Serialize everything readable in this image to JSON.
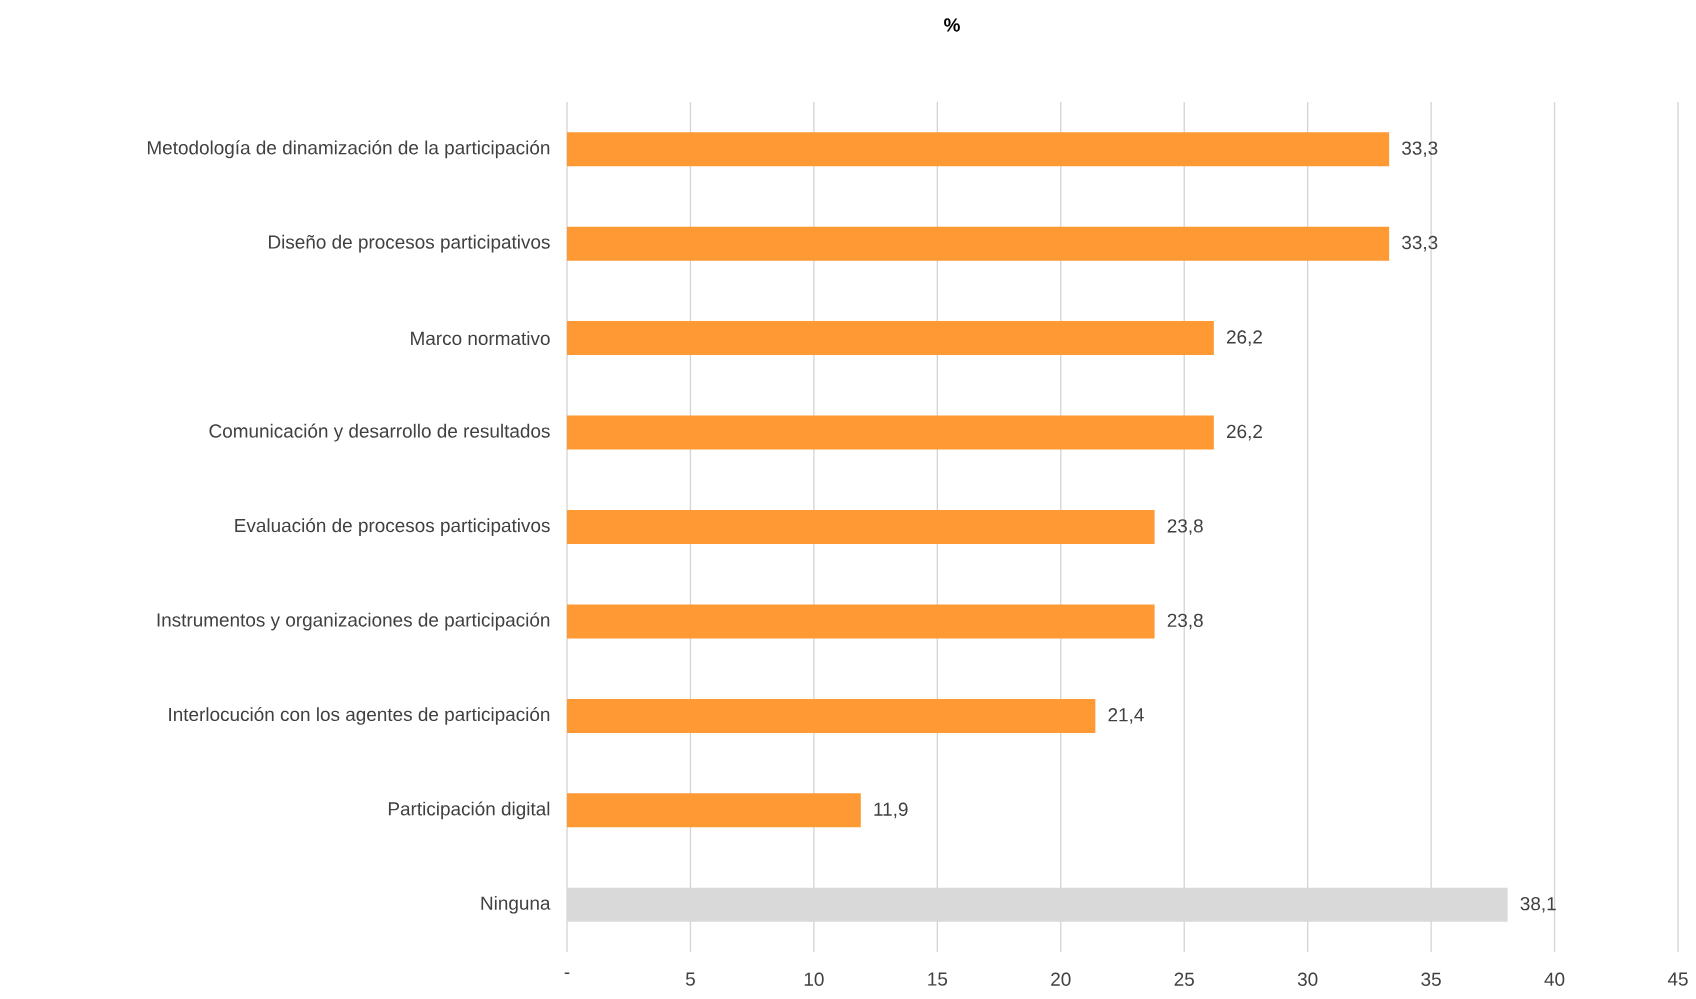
{
  "chart_data": {
    "type": "bar",
    "orientation": "horizontal",
    "title": "%",
    "categories": [
      "Metodología de dinamización de la participación",
      "Diseño de procesos participativos",
      "Marco normativo",
      "Comunicación y desarrollo de resultados",
      "Evaluación de procesos participativos",
      "Instrumentos y organizaciones de participación",
      "Interlocución con los agentes de participación",
      "Participación digital",
      "Ninguna"
    ],
    "values": [
      33.3,
      33.3,
      26.2,
      26.2,
      23.8,
      23.8,
      21.4,
      11.9,
      38.1
    ],
    "value_labels": [
      "33,3",
      "33,3",
      "26,2",
      "26,2",
      "23,8",
      "23,8",
      "21,4",
      "11,9",
      "38,1"
    ],
    "colors": [
      "#ff9933",
      "#ff9933",
      "#ff9933",
      "#ff9933",
      "#ff9933",
      "#ff9933",
      "#ff9933",
      "#ff9933",
      "#d9d9d9"
    ],
    "xlim": [
      0,
      45
    ],
    "xticks": [
      {
        "value": 0,
        "label": "-"
      },
      5,
      10,
      15,
      20,
      25,
      30,
      35,
      40,
      45
    ],
    "grid": "x"
  }
}
